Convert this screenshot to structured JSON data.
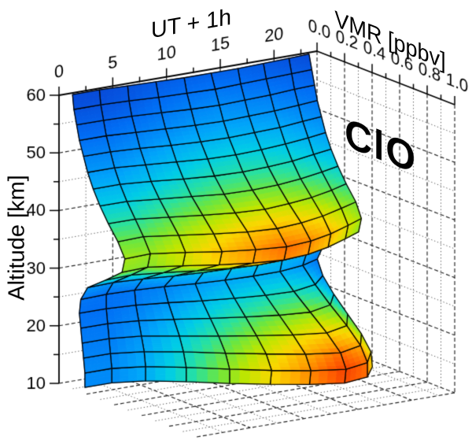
{
  "figure": {
    "species_label": "ClO",
    "background": "#ffffff"
  },
  "axes": {
    "time": {
      "title": "UT + 1h",
      "range": [
        0,
        24
      ],
      "major_ticks": [
        0,
        5,
        10,
        15,
        20
      ],
      "major_tick_labels": [
        "0",
        "5",
        "10",
        "15",
        "20"
      ],
      "minor_tick_step": 2.5
    },
    "vmr": {
      "title": "VMR [ppbv]",
      "range": [
        0,
        1
      ],
      "major_ticks": [
        0,
        0.2,
        0.4,
        0.6,
        0.8,
        1.0
      ],
      "major_tick_labels": [
        "0.0",
        "0.2",
        "0.4",
        "0.6",
        "0.8",
        "1.0"
      ],
      "minor_tick_step": 0.1
    },
    "altitude": {
      "title": "Altitude [km]",
      "range": [
        10,
        60
      ],
      "major_ticks": [
        10,
        20,
        30,
        40,
        50,
        60
      ],
      "major_tick_labels": [
        "10",
        "20",
        "30",
        "40",
        "50",
        "60"
      ],
      "minor_tick_step": 5
    }
  },
  "chart_data": {
    "type": "surface3d",
    "title": "ClO",
    "xlabel": "UT + 1h",
    "ylabel": "Altitude [km]",
    "zlabel": "VMR [ppbv]",
    "x_time_hours": [
      1,
      3.5,
      6,
      8.5,
      11,
      13.5,
      16,
      18.5,
      21,
      23
    ],
    "y_altitude_km": [
      10,
      12.5,
      15,
      17.5,
      20,
      22.5,
      25,
      27.5,
      30,
      32.5,
      35,
      37.5,
      40,
      42.5,
      45,
      47.5,
      50,
      52.5,
      55,
      57.5,
      60
    ],
    "vmr_ppbv": [
      [
        0.11,
        0.11,
        0.16,
        0.26,
        0.38,
        0.48,
        0.57,
        0.63,
        0.6,
        0.48
      ],
      [
        0.11,
        0.11,
        0.16,
        0.26,
        0.38,
        0.49,
        0.58,
        0.64,
        0.6,
        0.47
      ],
      [
        0.1,
        0.1,
        0.15,
        0.24,
        0.35,
        0.45,
        0.54,
        0.6,
        0.55,
        0.4
      ],
      [
        0.09,
        0.09,
        0.13,
        0.21,
        0.3,
        0.38,
        0.45,
        0.5,
        0.45,
        0.3
      ],
      [
        0.08,
        0.08,
        0.11,
        0.17,
        0.24,
        0.3,
        0.35,
        0.38,
        0.33,
        0.2
      ],
      [
        0.07,
        0.07,
        0.09,
        0.13,
        0.18,
        0.22,
        0.25,
        0.26,
        0.22,
        0.12
      ],
      [
        0.08,
        0.07,
        0.08,
        0.1,
        0.13,
        0.15,
        0.16,
        0.16,
        0.13,
        0.08
      ],
      [
        0.13,
        0.12,
        0.14,
        0.17,
        0.19,
        0.2,
        0.2,
        0.18,
        0.16,
        0.12
      ],
      [
        0.26,
        0.25,
        0.29,
        0.34,
        0.38,
        0.4,
        0.39,
        0.36,
        0.31,
        0.26
      ],
      [
        0.38,
        0.37,
        0.43,
        0.5,
        0.55,
        0.58,
        0.56,
        0.51,
        0.44,
        0.38
      ],
      [
        0.4,
        0.39,
        0.45,
        0.52,
        0.57,
        0.6,
        0.58,
        0.53,
        0.46,
        0.4
      ],
      [
        0.35,
        0.34,
        0.4,
        0.46,
        0.51,
        0.53,
        0.51,
        0.47,
        0.41,
        0.36
      ],
      [
        0.28,
        0.28,
        0.33,
        0.38,
        0.42,
        0.44,
        0.42,
        0.39,
        0.34,
        0.29
      ],
      [
        0.22,
        0.22,
        0.26,
        0.3,
        0.34,
        0.35,
        0.34,
        0.31,
        0.27,
        0.23
      ],
      [
        0.17,
        0.17,
        0.2,
        0.24,
        0.27,
        0.28,
        0.27,
        0.25,
        0.21,
        0.18
      ],
      [
        0.13,
        0.13,
        0.16,
        0.19,
        0.22,
        0.23,
        0.22,
        0.2,
        0.17,
        0.14
      ],
      [
        0.1,
        0.1,
        0.12,
        0.15,
        0.17,
        0.18,
        0.17,
        0.16,
        0.13,
        0.11
      ],
      [
        0.07,
        0.07,
        0.09,
        0.11,
        0.13,
        0.14,
        0.13,
        0.12,
        0.1,
        0.08
      ],
      [
        0.05,
        0.05,
        0.06,
        0.08,
        0.1,
        0.11,
        0.1,
        0.09,
        0.07,
        0.06
      ],
      [
        0.03,
        0.03,
        0.04,
        0.06,
        0.07,
        0.08,
        0.07,
        0.06,
        0.05,
        0.04
      ],
      [
        0.02,
        0.02,
        0.03,
        0.04,
        0.05,
        0.05,
        0.05,
        0.04,
        0.03,
        0.02
      ]
    ],
    "color_scale": {
      "min": 0,
      "max": 0.68
    },
    "colormap_stops": [
      [
        0.0,
        "#0a3ccd"
      ],
      [
        0.1,
        "#006ef5"
      ],
      [
        0.22,
        "#00a5fa"
      ],
      [
        0.32,
        "#00cde6"
      ],
      [
        0.42,
        "#28e1a0"
      ],
      [
        0.52,
        "#6ee63c"
      ],
      [
        0.62,
        "#bee600"
      ],
      [
        0.72,
        "#fad700"
      ],
      [
        0.82,
        "#ffa000"
      ],
      [
        0.9,
        "#ff5f00"
      ],
      [
        1.0,
        "#e81405"
      ]
    ],
    "grid": {
      "walls": true,
      "floor": true,
      "major_style": "dashed",
      "minor_style": "dotted"
    },
    "mesh_line_color": "#000000"
  },
  "colors": {
    "axis": "#000000",
    "grid_major": "#222222",
    "grid_minor": "#555555",
    "label": "#000000"
  }
}
